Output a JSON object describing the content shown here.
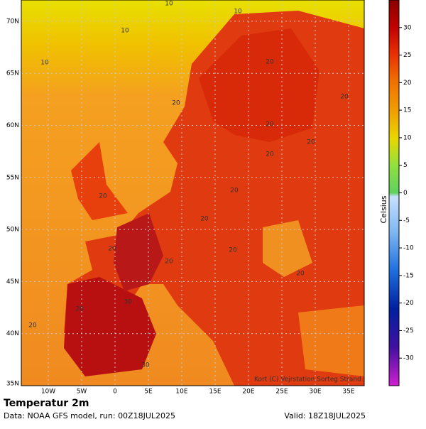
{
  "map": {
    "title": "Temperatur 2m",
    "source": "Data: NOAA GFS model, run: 00Z18JUL2025",
    "valid": "Valid: 18Z18JUL2025",
    "credit": "Kort (C) Vejrstation Sorteg Strand",
    "lat_labels": [
      "35N",
      "40N",
      "45N",
      "50N",
      "55N",
      "60N",
      "65N",
      "70N"
    ],
    "lon_labels": [
      "10W",
      "5W",
      "0",
      "5E",
      "10E",
      "15E",
      "20E",
      "25E",
      "30E",
      "35E"
    ],
    "contour_labels": [
      "10",
      "10",
      "10",
      "10",
      "20",
      "20",
      "20",
      "20",
      "20",
      "20",
      "20",
      "20",
      "20",
      "20",
      "20",
      "20",
      "20",
      "20",
      "20",
      "30",
      "30"
    ]
  },
  "colorbar": {
    "label": "Celsius",
    "range": [
      -35,
      35
    ],
    "ticks": [
      30,
      25,
      20,
      15,
      10,
      5,
      0,
      -5,
      -10,
      -15,
      -20,
      -25,
      -30
    ]
  }
}
